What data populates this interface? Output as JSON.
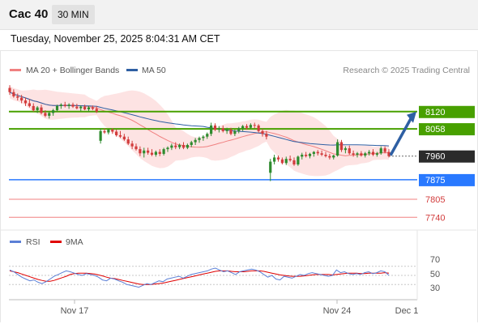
{
  "header": {
    "title": "Cac 40",
    "timeframe": "30 MIN"
  },
  "datetime": "Tuesday, November 25, 2025 8:04:31 AM CET",
  "legend": {
    "ma20": {
      "label": "MA 20 + Bollinger Bands",
      "color": "#f08080"
    },
    "ma50": {
      "label": "MA 50",
      "color": "#2e5fa3"
    }
  },
  "copyright": "Research © 2025 Trading Central",
  "rsi_legend": {
    "rsi": {
      "label": "RSI",
      "color": "#5b7fd6"
    },
    "ma9": {
      "label": "9MA",
      "color": "#e00000"
    }
  },
  "colors": {
    "resistance": "#48a000",
    "current": "#2b2b2b",
    "pivot": "#2979ff",
    "support": "#f08080",
    "candle_up": "#2e8b2e",
    "candle_down": "#d23c3c",
    "band_fill": "#fde0e0",
    "arrow": "#2e5fa3"
  },
  "chart_data": [
    {
      "type": "candlestick",
      "price_range": [
        7700,
        8230
      ],
      "levels": [
        {
          "kind": "resistance",
          "value": 8120,
          "label": "8120"
        },
        {
          "kind": "resistance",
          "value": 8058,
          "label": "8058"
        },
        {
          "kind": "current",
          "value": 7960,
          "label": "7960"
        },
        {
          "kind": "pivot",
          "value": 7875,
          "label": "7875"
        },
        {
          "kind": "support",
          "value": 7805,
          "label": "7805"
        },
        {
          "kind": "support",
          "value": 7740,
          "label": "7740"
        }
      ],
      "projection": {
        "direction": "up",
        "from": 7960,
        "to": 8120
      },
      "candles": [
        {
          "o": 8205,
          "h": 8215,
          "l": 8180,
          "c": 8190
        },
        {
          "o": 8190,
          "h": 8200,
          "l": 8170,
          "c": 8175
        },
        {
          "o": 8175,
          "h": 8185,
          "l": 8160,
          "c": 8170
        },
        {
          "o": 8170,
          "h": 8180,
          "l": 8150,
          "c": 8160
        },
        {
          "o": 8160,
          "h": 8170,
          "l": 8140,
          "c": 8150
        },
        {
          "o": 8150,
          "h": 8165,
          "l": 8135,
          "c": 8140
        },
        {
          "o": 8140,
          "h": 8150,
          "l": 8120,
          "c": 8125
        },
        {
          "o": 8125,
          "h": 8140,
          "l": 8115,
          "c": 8135
        },
        {
          "o": 8135,
          "h": 8145,
          "l": 8110,
          "c": 8115
        },
        {
          "o": 8115,
          "h": 8125,
          "l": 8100,
          "c": 8105
        },
        {
          "o": 8105,
          "h": 8120,
          "l": 8095,
          "c": 8115
        },
        {
          "o": 8115,
          "h": 8130,
          "l": 8105,
          "c": 8125
        },
        {
          "o": 8125,
          "h": 8145,
          "l": 8120,
          "c": 8140
        },
        {
          "o": 8140,
          "h": 8150,
          "l": 8130,
          "c": 8145
        },
        {
          "o": 8145,
          "h": 8155,
          "l": 8135,
          "c": 8140
        },
        {
          "o": 8140,
          "h": 8150,
          "l": 8130,
          "c": 8145
        },
        {
          "o": 8145,
          "h": 8152,
          "l": 8133,
          "c": 8138
        },
        {
          "o": 8138,
          "h": 8148,
          "l": 8128,
          "c": 8132
        },
        {
          "o": 8132,
          "h": 8142,
          "l": 8122,
          "c": 8138
        },
        {
          "o": 8138,
          "h": 8145,
          "l": 8125,
          "c": 8128
        },
        {
          "o": 8128,
          "h": 8140,
          "l": 8120,
          "c": 8135
        },
        {
          "o": 8135,
          "h": 8142,
          "l": 8125,
          "c": 8130
        },
        {
          "o": 8130,
          "h": 8140,
          "l": 8115,
          "c": 8120
        },
        {
          "o": 8015,
          "h": 8060,
          "l": 8005,
          "c": 8050
        },
        {
          "o": 8050,
          "h": 8060,
          "l": 8040,
          "c": 8045
        },
        {
          "o": 8045,
          "h": 8058,
          "l": 8038,
          "c": 8055
        },
        {
          "o": 8055,
          "h": 8060,
          "l": 8040,
          "c": 8048
        },
        {
          "o": 8048,
          "h": 8055,
          "l": 8030,
          "c": 8035
        },
        {
          "o": 8035,
          "h": 8050,
          "l": 8025,
          "c": 8030
        },
        {
          "o": 8030,
          "h": 8040,
          "l": 8015,
          "c": 8020
        },
        {
          "o": 8020,
          "h": 8030,
          "l": 8000,
          "c": 8005
        },
        {
          "o": 8005,
          "h": 8015,
          "l": 7985,
          "c": 7995
        },
        {
          "o": 7995,
          "h": 8005,
          "l": 7980,
          "c": 7985
        },
        {
          "o": 7985,
          "h": 7995,
          "l": 7960,
          "c": 7970
        },
        {
          "o": 7970,
          "h": 7990,
          "l": 7955,
          "c": 7980
        },
        {
          "o": 7980,
          "h": 7990,
          "l": 7965,
          "c": 7972
        },
        {
          "o": 7972,
          "h": 7985,
          "l": 7960,
          "c": 7965
        },
        {
          "o": 7965,
          "h": 7980,
          "l": 7958,
          "c": 7975
        },
        {
          "o": 7975,
          "h": 7985,
          "l": 7960,
          "c": 7968
        },
        {
          "o": 7968,
          "h": 7990,
          "l": 7962,
          "c": 7985
        },
        {
          "o": 7985,
          "h": 7995,
          "l": 7975,
          "c": 7990
        },
        {
          "o": 7990,
          "h": 8005,
          "l": 7982,
          "c": 7998
        },
        {
          "o": 7998,
          "h": 8010,
          "l": 7985,
          "c": 7992
        },
        {
          "o": 7992,
          "h": 8005,
          "l": 7985,
          "c": 8000
        },
        {
          "o": 8000,
          "h": 8010,
          "l": 7985,
          "c": 7990
        },
        {
          "o": 7990,
          "h": 8005,
          "l": 7985,
          "c": 8000
        },
        {
          "o": 8000,
          "h": 8015,
          "l": 7992,
          "c": 8010
        },
        {
          "o": 8010,
          "h": 8025,
          "l": 8000,
          "c": 8018
        },
        {
          "o": 8018,
          "h": 8030,
          "l": 8008,
          "c": 8025
        },
        {
          "o": 8025,
          "h": 8035,
          "l": 8015,
          "c": 8030
        },
        {
          "o": 8030,
          "h": 8045,
          "l": 8022,
          "c": 8040
        },
        {
          "o": 8040,
          "h": 8080,
          "l": 8032,
          "c": 8070
        },
        {
          "o": 8070,
          "h": 8078,
          "l": 8050,
          "c": 8055
        },
        {
          "o": 8055,
          "h": 8068,
          "l": 8045,
          "c": 8060
        },
        {
          "o": 8060,
          "h": 8070,
          "l": 8045,
          "c": 8050
        },
        {
          "o": 8050,
          "h": 8062,
          "l": 8040,
          "c": 8055
        },
        {
          "o": 8055,
          "h": 8062,
          "l": 8035,
          "c": 8040
        },
        {
          "o": 8040,
          "h": 8055,
          "l": 8032,
          "c": 8050
        },
        {
          "o": 8050,
          "h": 8065,
          "l": 8042,
          "c": 8060
        },
        {
          "o": 8060,
          "h": 8072,
          "l": 8050,
          "c": 8068
        },
        {
          "o": 8068,
          "h": 8075,
          "l": 8055,
          "c": 8062
        },
        {
          "o": 8062,
          "h": 8078,
          "l": 8058,
          "c": 8072
        },
        {
          "o": 8072,
          "h": 8080,
          "l": 8060,
          "c": 8070
        },
        {
          "o": 8070,
          "h": 8075,
          "l": 8045,
          "c": 8050
        },
        {
          "o": 8050,
          "h": 8058,
          "l": 8030,
          "c": 8040
        },
        {
          "o": 8040,
          "h": 8050,
          "l": 8020,
          "c": 8030
        },
        {
          "o": 7900,
          "h": 7950,
          "l": 7870,
          "c": 7940
        },
        {
          "o": 7940,
          "h": 7965,
          "l": 7930,
          "c": 7955
        },
        {
          "o": 7955,
          "h": 7962,
          "l": 7940,
          "c": 7948
        },
        {
          "o": 7948,
          "h": 7955,
          "l": 7930,
          "c": 7935
        },
        {
          "o": 7935,
          "h": 7958,
          "l": 7928,
          "c": 7950
        },
        {
          "o": 7950,
          "h": 7962,
          "l": 7940,
          "c": 7945
        },
        {
          "o": 7945,
          "h": 7955,
          "l": 7925,
          "c": 7930
        },
        {
          "o": 7930,
          "h": 7962,
          "l": 7925,
          "c": 7958
        },
        {
          "o": 7958,
          "h": 7972,
          "l": 7948,
          "c": 7965
        },
        {
          "o": 7965,
          "h": 7975,
          "l": 7955,
          "c": 7960
        },
        {
          "o": 7960,
          "h": 7972,
          "l": 7952,
          "c": 7968
        },
        {
          "o": 7968,
          "h": 7978,
          "l": 7958,
          "c": 7975
        },
        {
          "o": 7975,
          "h": 7982,
          "l": 7962,
          "c": 7970
        },
        {
          "o": 7970,
          "h": 7980,
          "l": 7960,
          "c": 7965
        },
        {
          "o": 7965,
          "h": 7975,
          "l": 7955,
          "c": 7960
        },
        {
          "o": 7960,
          "h": 7968,
          "l": 7948,
          "c": 7955
        },
        {
          "o": 7955,
          "h": 7965,
          "l": 7948,
          "c": 7962
        },
        {
          "o": 7962,
          "h": 8020,
          "l": 7958,
          "c": 8010
        },
        {
          "o": 8010,
          "h": 8018,
          "l": 7975,
          "c": 7982
        },
        {
          "o": 7982,
          "h": 7995,
          "l": 7970,
          "c": 7988
        },
        {
          "o": 7988,
          "h": 7998,
          "l": 7965,
          "c": 7970
        },
        {
          "o": 7970,
          "h": 7980,
          "l": 7958,
          "c": 7965
        },
        {
          "o": 7965,
          "h": 7975,
          "l": 7955,
          "c": 7970
        },
        {
          "o": 7970,
          "h": 7978,
          "l": 7958,
          "c": 7962
        },
        {
          "o": 7962,
          "h": 7975,
          "l": 7955,
          "c": 7970
        },
        {
          "o": 7970,
          "h": 7982,
          "l": 7962,
          "c": 7975
        },
        {
          "o": 7975,
          "h": 7985,
          "l": 7960,
          "c": 7965
        },
        {
          "o": 7965,
          "h": 7975,
          "l": 7958,
          "c": 7970
        },
        {
          "o": 7970,
          "h": 7995,
          "l": 7965,
          "c": 7988
        },
        {
          "o": 7988,
          "h": 7995,
          "l": 7970,
          "c": 7975
        },
        {
          "o": 7975,
          "h": 7985,
          "l": 7955,
          "c": 7960
        }
      ],
      "x_labels": [
        "Nov 17",
        "Nov 24",
        "Dec 1"
      ]
    },
    {
      "type": "line",
      "name": "RSI",
      "ylim": [
        0,
        100
      ],
      "y_ticks": [
        70,
        50,
        30
      ],
      "rsi": [
        62,
        58,
        52,
        46,
        42,
        38,
        40,
        35,
        32,
        36,
        42,
        48,
        52,
        56,
        60,
        58,
        55,
        52,
        50,
        54,
        52,
        50,
        46,
        40,
        38,
        44,
        42,
        38,
        35,
        30,
        28,
        26,
        24,
        28,
        32,
        30,
        34,
        38,
        36,
        42,
        44,
        46,
        48,
        44,
        48,
        52,
        54,
        56,
        58,
        60,
        64,
        66,
        62,
        58,
        60,
        56,
        52,
        58,
        60,
        62,
        64,
        62,
        58,
        52,
        46,
        50,
        42,
        40,
        48,
        46,
        44,
        48,
        52,
        50,
        54,
        56,
        54,
        52,
        50,
        48,
        50,
        62,
        56,
        58,
        54,
        52,
        54,
        52,
        56,
        58,
        54,
        56,
        60,
        58,
        50
      ],
      "ma9": [
        60,
        58,
        56,
        53,
        50,
        47,
        44,
        41,
        39,
        37,
        37,
        39,
        42,
        45,
        48,
        52,
        54,
        55,
        55,
        55,
        54,
        53,
        51,
        49,
        46,
        44,
        43,
        41,
        39,
        37,
        35,
        33,
        31,
        30,
        30,
        30,
        31,
        32,
        33,
        35,
        37,
        39,
        41,
        43,
        45,
        47,
        49,
        51,
        53,
        55,
        57,
        59,
        60,
        60,
        60,
        59,
        58,
        58,
        58,
        59,
        60,
        60,
        60,
        59,
        57,
        55,
        53,
        51,
        50,
        49,
        48,
        48,
        48,
        49,
        50,
        51,
        52,
        52,
        52,
        52,
        51,
        52,
        53,
        54,
        55,
        55,
        55,
        54,
        54,
        55,
        55,
        55,
        55,
        56,
        55
      ]
    }
  ]
}
